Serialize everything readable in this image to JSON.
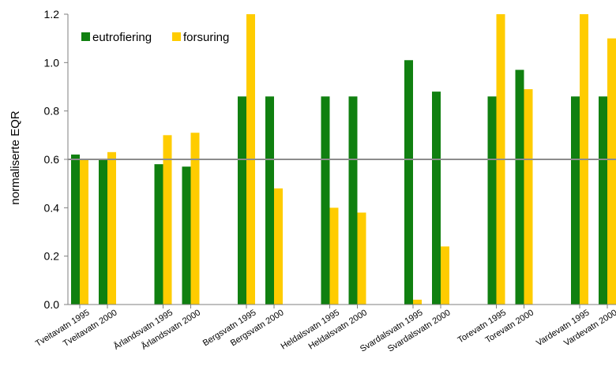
{
  "chart_data": {
    "type": "bar",
    "ylabel": "normaliserte EQR",
    "ylim": [
      0,
      1.2
    ],
    "yticks": [
      "0.0",
      "0.2",
      "0.4",
      "0.6",
      "0.8",
      "1.0",
      "1.2"
    ],
    "reference_line": 0.6,
    "legend_position": "top-left",
    "categories": [
      "Tveitavatn 1995",
      "Tveitavatn  2000",
      "Årlandsvatn 1995",
      "Årlandsvatn 2000",
      "Bergsvatn 1995",
      "Bergsvatn 2000",
      "Heldalsvatn 1995",
      "Heldalsvatn 2000",
      "Svardalsvatn 1995",
      "Svardalsvatn 2000",
      "Torevatn 1995",
      "Torevatn 2000",
      "Vardevatn 1995",
      "Vardevatn 2000"
    ],
    "series": [
      {
        "name": "eutrofiering",
        "color": "#108010",
        "values": [
          0.62,
          0.6,
          0.58,
          0.57,
          0.86,
          0.86,
          0.86,
          0.86,
          1.01,
          0.88,
          0.86,
          0.97,
          0.86,
          0.86
        ]
      },
      {
        "name": "forsuring",
        "color": "#ffcc00",
        "values": [
          0.6,
          0.63,
          0.7,
          0.71,
          1.21,
          0.48,
          0.4,
          0.38,
          0.02,
          0.24,
          1.21,
          0.89,
          1.21,
          1.1
        ]
      }
    ]
  }
}
